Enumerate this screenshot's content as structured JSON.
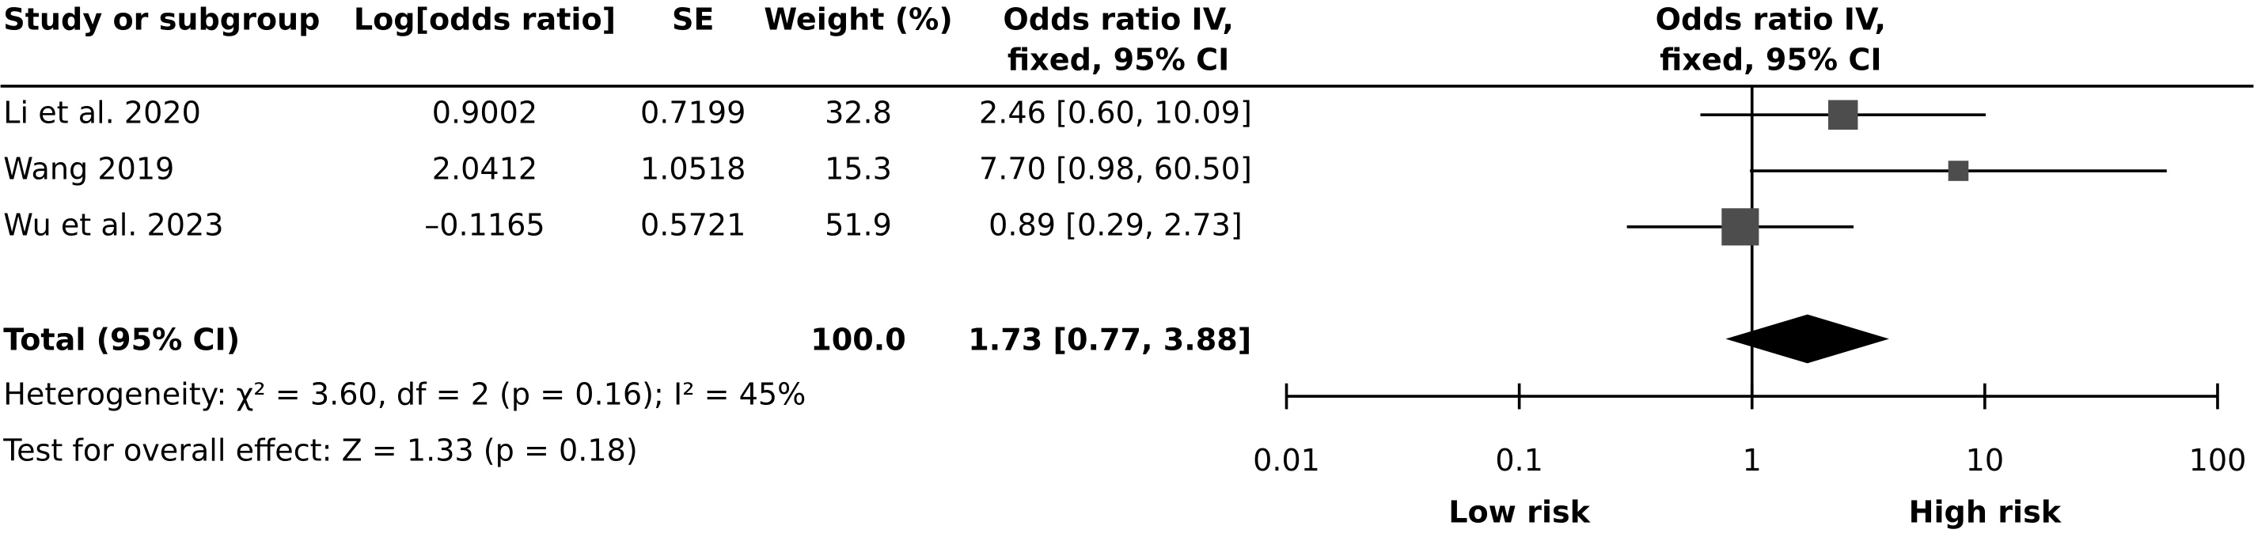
{
  "chart_data": {
    "type": "forest",
    "columns": [
      "Study or subgroup",
      "Log[odds ratio]",
      "SE",
      "Weight (%)"
    ],
    "ci_header": [
      "Odds ratio IV,",
      "fixed, 95% CI"
    ],
    "plot_header": [
      "Odds ratio IV,",
      "fixed, 95% CI"
    ],
    "studies": [
      {
        "name": "Li et al. 2020",
        "log_odds_ratio": "0.9002",
        "se": "0.7199",
        "weight": 32.8,
        "odds_ratio": 2.46,
        "ci_lower": 0.6,
        "ci_upper": 10.09,
        "ci_label": "2.46 [0.60, 10.09]"
      },
      {
        "name": "Wang 2019",
        "log_odds_ratio": "2.0412",
        "se": "1.0518",
        "weight": 15.3,
        "odds_ratio": 7.7,
        "ci_lower": 0.98,
        "ci_upper": 60.5,
        "ci_label": "7.70 [0.98, 60.50]"
      },
      {
        "name": "Wu et al. 2023",
        "log_odds_ratio": "–0.1165",
        "se": "0.5721",
        "weight": 51.9,
        "odds_ratio": 0.89,
        "ci_lower": 0.29,
        "ci_upper": 2.73,
        "ci_label": "0.89 [0.29, 2.73]"
      }
    ],
    "total": {
      "name": "Total (95% CI)",
      "weight": "100.0",
      "odds_ratio": 1.73,
      "ci_lower": 0.77,
      "ci_upper": 3.88,
      "ci_label": "1.73 [0.77, 3.88]"
    },
    "heterogeneity": "Heterogeneity: χ² = 3.60, df = 2 (p = 0.16); I² = 45%",
    "overall_effect": "Test for overall effect: Z = 1.33 (p = 0.18)",
    "log_scale": true,
    "xlim": [
      0.01,
      100
    ],
    "xticks": [
      0.01,
      0.1,
      1,
      10,
      100
    ],
    "favours": {
      "left": "Low risk",
      "right": "High risk"
    },
    "marker_color": "#4d4d4d",
    "diamond_color": "#000000"
  }
}
